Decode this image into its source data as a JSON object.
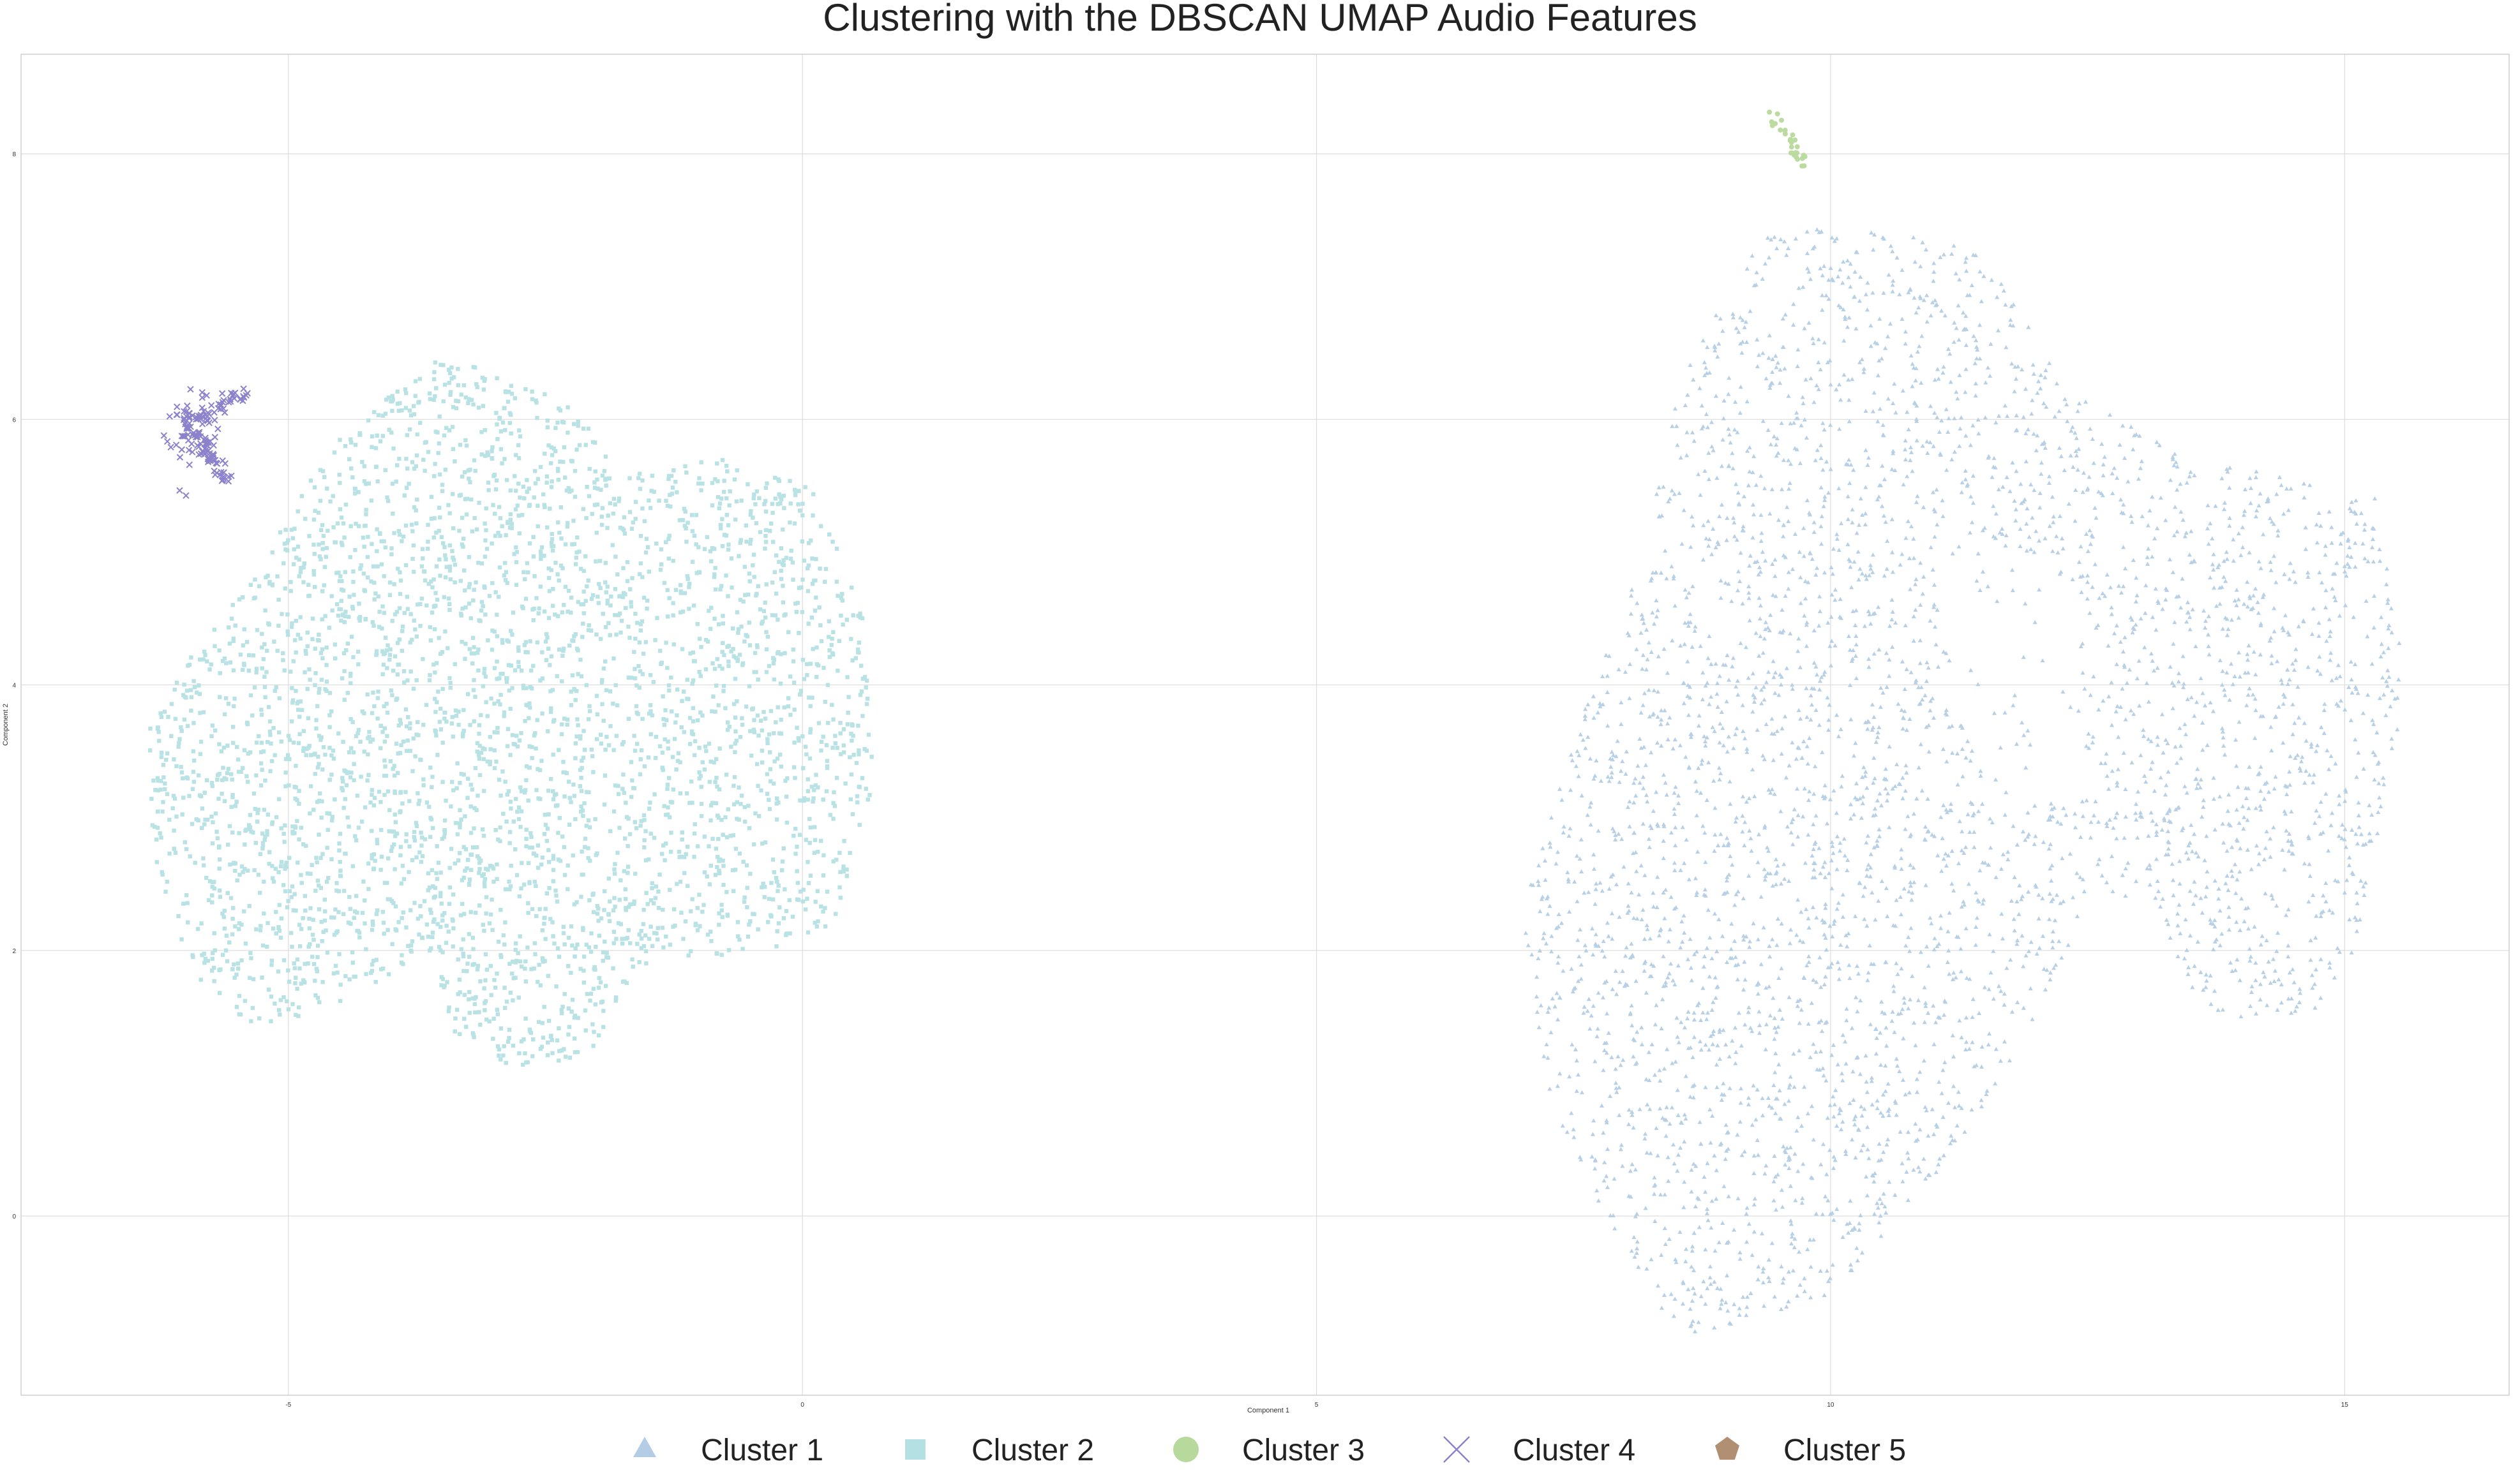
{
  "chart_data": {
    "type": "scatter",
    "title": "Clustering with the DBSCAN UMAP Audio Features",
    "xlabel": "Component 1",
    "ylabel": "Component 2",
    "xlim": [
      -7.6,
      16.6
    ],
    "ylim": [
      -1.35,
      8.75
    ],
    "xticks": [
      -5,
      0,
      5,
      10,
      15
    ],
    "yticks": [
      0,
      2,
      4,
      6,
      8
    ],
    "grid": true,
    "legend_position": "bottom-center",
    "series": [
      {
        "name": "Cluster 1",
        "marker": "triangle",
        "color": "#b4cde4",
        "approx_points": 14000,
        "description_regions": [
          {
            "type": "polygon",
            "vertices": [
              [
                9.5,
                7.5
              ],
              [
                11.5,
                7.3
              ],
              [
                12.3,
                6.2
              ],
              [
                13.6,
                5.7
              ],
              [
                15.3,
                5.4
              ],
              [
                15.6,
                4.0
              ],
              [
                15.1,
                2.0
              ],
              [
                14.7,
                1.5
              ],
              [
                13.6,
                1.5
              ],
              [
                13.2,
                2.3
              ],
              [
                12.5,
                2.5
              ],
              [
                12.3,
                2.0
              ],
              [
                11.6,
                0.9
              ],
              [
                11.0,
                0.3
              ],
              [
                10.0,
                -0.6
              ],
              [
                9.2,
                -0.8
              ],
              [
                8.5,
                -0.9
              ],
              [
                7.8,
                0.0
              ],
              [
                7.2,
                1.0
              ],
              [
                7.0,
                2.3
              ],
              [
                7.5,
                3.6
              ],
              [
                8.2,
                5.0
              ],
              [
                8.5,
                6.2
              ],
              [
                9.0,
                7.0
              ]
            ],
            "density": 1.0
          },
          {
            "type": "hole",
            "vertices": [
              [
                11.0,
                5.0
              ],
              [
                12.4,
                4.8
              ],
              [
                12.5,
                3.2
              ],
              [
                11.6,
                3.0
              ],
              [
                11.2,
                4.0
              ]
            ]
          }
        ]
      },
      {
        "name": "Cluster 2",
        "marker": "square",
        "color": "#b5e0e3",
        "approx_points": 11000,
        "description_regions": [
          {
            "type": "polygon",
            "vertices": [
              [
                -3.5,
                6.5
              ],
              [
                -2.2,
                6.1
              ],
              [
                -1.8,
                5.6
              ],
              [
                -0.8,
                5.7
              ],
              [
                0.1,
                5.5
              ],
              [
                0.6,
                4.5
              ],
              [
                0.7,
                3.2
              ],
              [
                0.3,
                2.2
              ],
              [
                -0.3,
                2.0
              ],
              [
                -1.5,
                1.9
              ],
              [
                -2.1,
                1.2
              ],
              [
                -2.8,
                1.1
              ],
              [
                -3.4,
                1.4
              ],
              [
                -3.6,
                2.0
              ],
              [
                -4.5,
                1.6
              ],
              [
                -5.3,
                1.4
              ],
              [
                -5.9,
                1.8
              ],
              [
                -6.3,
                2.6
              ],
              [
                -6.4,
                3.6
              ],
              [
                -5.9,
                4.3
              ],
              [
                -5.2,
                5.0
              ],
              [
                -4.6,
                5.8
              ]
            ]
          }
        ]
      },
      {
        "name": "Cluster 3",
        "marker": "circle",
        "color": "#b7d99c",
        "approx_points": 60,
        "description_regions": [
          {
            "type": "streak",
            "from": [
              9.45,
              8.3
            ],
            "to": [
              9.75,
              7.9
            ]
          }
        ]
      },
      {
        "name": "Cluster 4",
        "marker": "x",
        "color": "#8c82cc",
        "approx_points": 110,
        "description_regions": [
          {
            "type": "cluster",
            "center": [
              -5.95,
              5.9
            ],
            "spread": [
              0.15,
              0.2
            ]
          },
          {
            "type": "streak",
            "from": [
              -6.0,
              5.95
            ],
            "to": [
              -5.4,
              6.2
            ]
          },
          {
            "type": "streak",
            "from": [
              -5.9,
              5.9
            ],
            "to": [
              -5.6,
              5.55
            ]
          }
        ]
      },
      {
        "name": "Cluster 5",
        "marker": "pentagon",
        "color": "#b08f72",
        "approx_points": 0,
        "description_regions": []
      }
    ]
  }
}
